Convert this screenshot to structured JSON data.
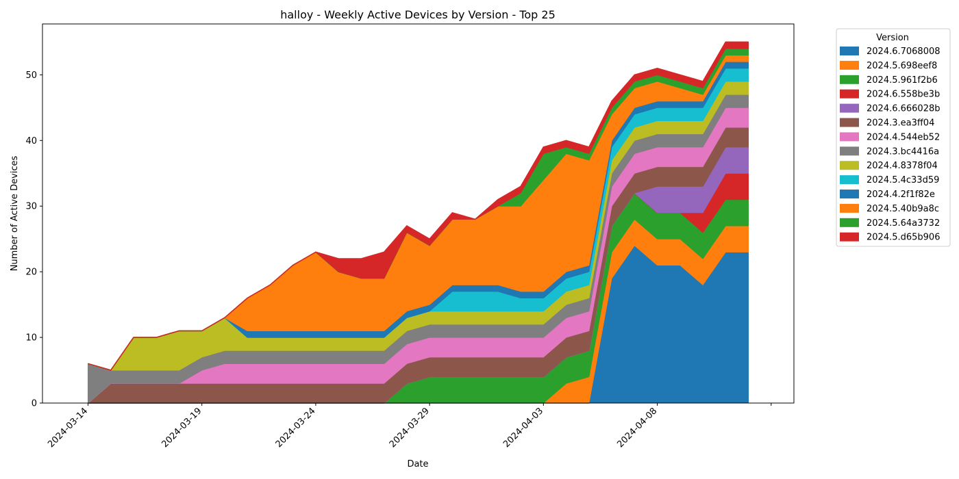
{
  "chart_data": {
    "type": "area",
    "stacked": true,
    "title": "halloy - Weekly Active Devices by Version - Top 25",
    "xlabel": "Date",
    "ylabel": "Number of Active Devices",
    "x_ticks": [
      "2024-03-14",
      "2024-03-19",
      "2024-03-24",
      "2024-03-29",
      "2024-04-03",
      "2024-04-08"
    ],
    "y_ticks": [
      0,
      10,
      20,
      30,
      40,
      50
    ],
    "ylim": [
      0,
      57.75
    ],
    "xlim": [
      "2024-03-12",
      "2024-04-14"
    ],
    "legend_title": "Version",
    "legend_position": "outside right",
    "dates": [
      "2024-03-14",
      "2024-03-15",
      "2024-03-16",
      "2024-03-17",
      "2024-03-18",
      "2024-03-19",
      "2024-03-20",
      "2024-03-21",
      "2024-03-22",
      "2024-03-23",
      "2024-03-24",
      "2024-03-25",
      "2024-03-26",
      "2024-03-27",
      "2024-03-28",
      "2024-03-29",
      "2024-03-30",
      "2024-03-31",
      "2024-04-01",
      "2024-04-02",
      "2024-04-03",
      "2024-04-04",
      "2024-04-05",
      "2024-04-06",
      "2024-04-07",
      "2024-04-08",
      "2024-04-09",
      "2024-04-10",
      "2024-04-11",
      "2024-04-12"
    ],
    "series": [
      {
        "name": "2024.6.7068008",
        "color": "#1f77b4",
        "values": [
          0,
          0,
          0,
          0,
          0,
          0,
          0,
          0,
          0,
          0,
          0,
          0,
          0,
          0,
          0,
          0,
          0,
          0,
          0,
          0,
          0,
          0,
          0,
          19,
          24,
          21,
          21,
          18,
          23,
          23
        ]
      },
      {
        "name": "2024.5.698eef8",
        "color": "#ff7f0e",
        "values": [
          0,
          0,
          0,
          0,
          0,
          0,
          0,
          0,
          0,
          0,
          0,
          0,
          0,
          0,
          0,
          0,
          0,
          0,
          0,
          0,
          0,
          3,
          4,
          4,
          4,
          4,
          4,
          4,
          4,
          4
        ]
      },
      {
        "name": "2024.5.961f2b6",
        "color": "#2ca02c",
        "values": [
          0,
          0,
          0,
          0,
          0,
          0,
          0,
          0,
          0,
          0,
          0,
          0,
          0,
          0,
          3,
          4,
          4,
          4,
          4,
          4,
          4,
          4,
          4,
          4,
          4,
          4,
          4,
          4,
          4,
          4
        ]
      },
      {
        "name": "2024.6.558be3b",
        "color": "#d62728",
        "values": [
          0,
          0,
          0,
          0,
          0,
          0,
          0,
          0,
          0,
          0,
          0,
          0,
          0,
          0,
          0,
          0,
          0,
          0,
          0,
          0,
          0,
          0,
          0,
          0,
          0,
          0,
          0,
          3,
          4,
          4
        ]
      },
      {
        "name": "2024.6.666028b",
        "color": "#9467bd",
        "values": [
          0,
          0,
          0,
          0,
          0,
          0,
          0,
          0,
          0,
          0,
          0,
          0,
          0,
          0,
          0,
          0,
          0,
          0,
          0,
          0,
          0,
          0,
          0,
          0,
          0,
          4,
          4,
          4,
          4,
          4
        ]
      },
      {
        "name": "2024.3.ea3ff04",
        "color": "#8c564b",
        "values": [
          0,
          3,
          3,
          3,
          3,
          3,
          3,
          3,
          3,
          3,
          3,
          3,
          3,
          3,
          3,
          3,
          3,
          3,
          3,
          3,
          3,
          3,
          3,
          3,
          3,
          3,
          3,
          3,
          3,
          3
        ]
      },
      {
        "name": "2024.4.544eb52",
        "color": "#e377c2",
        "values": [
          0,
          0,
          0,
          0,
          0,
          2,
          3,
          3,
          3,
          3,
          3,
          3,
          3,
          3,
          3,
          3,
          3,
          3,
          3,
          3,
          3,
          3,
          3,
          3,
          3,
          3,
          3,
          3,
          3,
          3
        ]
      },
      {
        "name": "2024.3.bc4416a",
        "color": "#7f7f7f",
        "values": [
          6,
          2,
          2,
          2,
          2,
          2,
          2,
          2,
          2,
          2,
          2,
          2,
          2,
          2,
          2,
          2,
          2,
          2,
          2,
          2,
          2,
          2,
          2,
          2,
          2,
          2,
          2,
          2,
          2,
          2
        ]
      },
      {
        "name": "2024.4.8378f04",
        "color": "#bcbd22",
        "values": [
          0,
          0,
          5,
          5,
          6,
          4,
          5,
          2,
          2,
          2,
          2,
          2,
          2,
          2,
          2,
          2,
          2,
          2,
          2,
          2,
          2,
          2,
          2,
          2,
          2,
          2,
          2,
          2,
          2,
          2
        ]
      },
      {
        "name": "2024.5.4c33d59",
        "color": "#17becf",
        "values": [
          0,
          0,
          0,
          0,
          0,
          0,
          0,
          0,
          0,
          0,
          0,
          0,
          0,
          0,
          0,
          0,
          3,
          3,
          3,
          2,
          2,
          2,
          2,
          2,
          2,
          2,
          2,
          2,
          2,
          2
        ]
      },
      {
        "name": "2024.4.2f1f82e",
        "color": "#1f77b4",
        "values": [
          0,
          0,
          0,
          0,
          0,
          0,
          0,
          1,
          1,
          1,
          1,
          1,
          1,
          1,
          1,
          1,
          1,
          1,
          1,
          1,
          1,
          1,
          1,
          1,
          1,
          1,
          1,
          1,
          1,
          1
        ]
      },
      {
        "name": "2024.5.40b9a8c",
        "color": "#ff7f0e",
        "values": [
          0,
          0,
          0,
          0,
          0,
          0,
          0,
          5,
          7,
          10,
          12,
          9,
          8,
          8,
          12,
          9,
          10,
          10,
          12,
          13,
          17,
          18,
          16,
          4,
          3,
          3,
          2,
          1,
          1,
          1
        ]
      },
      {
        "name": "2024.5.64a3732",
        "color": "#2ca02c",
        "values": [
          0,
          0,
          0,
          0,
          0,
          0,
          0,
          0,
          0,
          0,
          0,
          0,
          0,
          0,
          0,
          0,
          0,
          0,
          0,
          2,
          4,
          1,
          1,
          1,
          1,
          1,
          1,
          1,
          1,
          1
        ]
      },
      {
        "name": "2024.5.d65b906",
        "color": "#d62728",
        "values": [
          0,
          0,
          0,
          0,
          0,
          0,
          0,
          0,
          0,
          0,
          0,
          2,
          3,
          4,
          1,
          1,
          1,
          0,
          1,
          1,
          1,
          1,
          1,
          1,
          1,
          1,
          1,
          1,
          1,
          1
        ]
      }
    ]
  }
}
